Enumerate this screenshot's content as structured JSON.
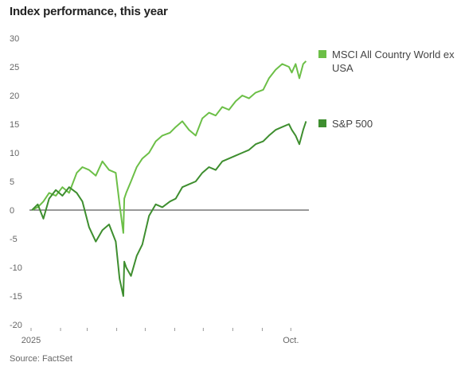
{
  "title": "Index performance, this year",
  "source": "Source: FactSet",
  "chart_data": {
    "type": "line",
    "title": "Index performance, this year",
    "ylim": [
      -20,
      30
    ],
    "yticks": [
      30,
      25,
      20,
      15,
      10,
      5,
      0,
      -5,
      -10,
      -15,
      -20
    ],
    "ytick_labels": [
      "30",
      "25",
      "20",
      "15",
      "10",
      "5",
      "0",
      "-5",
      "-10",
      "-15",
      "-20"
    ],
    "xtick_labels": [
      "2025",
      "Oct."
    ],
    "grid": false,
    "legend_position": "right",
    "series": [
      {
        "name": "MSCI All Country World ex USA",
        "color": "#6cbf47",
        "x": [
          "2025-01-02",
          "2025-01-08",
          "2025-01-14",
          "2025-01-20",
          "2025-01-27",
          "2025-02-03",
          "2025-02-10",
          "2025-02-18",
          "2025-02-24",
          "2025-03-03",
          "2025-03-10",
          "2025-03-17",
          "2025-03-24",
          "2025-03-31",
          "2025-04-04",
          "2025-04-08",
          "2025-04-09",
          "2025-04-11",
          "2025-04-16",
          "2025-04-22",
          "2025-04-28",
          "2025-05-05",
          "2025-05-12",
          "2025-05-19",
          "2025-05-27",
          "2025-06-02",
          "2025-06-09",
          "2025-06-16",
          "2025-06-23",
          "2025-06-30",
          "2025-07-07",
          "2025-07-14",
          "2025-07-21",
          "2025-07-28",
          "2025-08-04",
          "2025-08-11",
          "2025-08-18",
          "2025-08-25",
          "2025-09-02",
          "2025-09-08",
          "2025-09-15",
          "2025-09-22",
          "2025-09-29",
          "2025-10-02",
          "2025-10-06",
          "2025-10-10",
          "2025-10-14",
          "2025-10-17"
        ],
        "values": [
          0,
          0.5,
          1.5,
          3,
          2.5,
          4,
          3,
          6.5,
          7.5,
          7,
          6,
          8.5,
          7,
          6.5,
          1,
          -4,
          2,
          3,
          5,
          7.5,
          9,
          10,
          12,
          13,
          13.5,
          14.5,
          15.5,
          14,
          13,
          16,
          17,
          16.5,
          18,
          17.5,
          19,
          20,
          19.5,
          20.5,
          21,
          23,
          24.5,
          25.5,
          25,
          24,
          25.5,
          23,
          25.5,
          26
        ]
      },
      {
        "name": "S&P 500",
        "color": "#3e8e2f",
        "x": [
          "2025-01-02",
          "2025-01-08",
          "2025-01-14",
          "2025-01-20",
          "2025-01-27",
          "2025-02-03",
          "2025-02-10",
          "2025-02-18",
          "2025-02-24",
          "2025-03-03",
          "2025-03-10",
          "2025-03-17",
          "2025-03-24",
          "2025-03-31",
          "2025-04-04",
          "2025-04-08",
          "2025-04-09",
          "2025-04-11",
          "2025-04-16",
          "2025-04-22",
          "2025-04-28",
          "2025-05-05",
          "2025-05-12",
          "2025-05-19",
          "2025-05-27",
          "2025-06-02",
          "2025-06-09",
          "2025-06-16",
          "2025-06-23",
          "2025-06-30",
          "2025-07-07",
          "2025-07-14",
          "2025-07-21",
          "2025-07-28",
          "2025-08-04",
          "2025-08-11",
          "2025-08-18",
          "2025-08-25",
          "2025-09-02",
          "2025-09-08",
          "2025-09-15",
          "2025-09-22",
          "2025-09-29",
          "2025-10-02",
          "2025-10-06",
          "2025-10-10",
          "2025-10-14",
          "2025-10-17"
        ],
        "values": [
          0,
          1,
          -1.5,
          2,
          3.5,
          2.5,
          4,
          3,
          1.5,
          -3,
          -5.5,
          -3.5,
          -2.5,
          -5.5,
          -12,
          -15,
          -9,
          -10,
          -11.5,
          -8,
          -6,
          -1,
          1,
          0.5,
          1.5,
          2,
          4,
          4.5,
          5,
          6.5,
          7.5,
          7,
          8.5,
          9,
          9.5,
          10,
          10.5,
          11.5,
          12,
          13,
          14,
          14.5,
          15,
          14,
          13,
          11.5,
          14,
          15.5
        ]
      }
    ]
  }
}
